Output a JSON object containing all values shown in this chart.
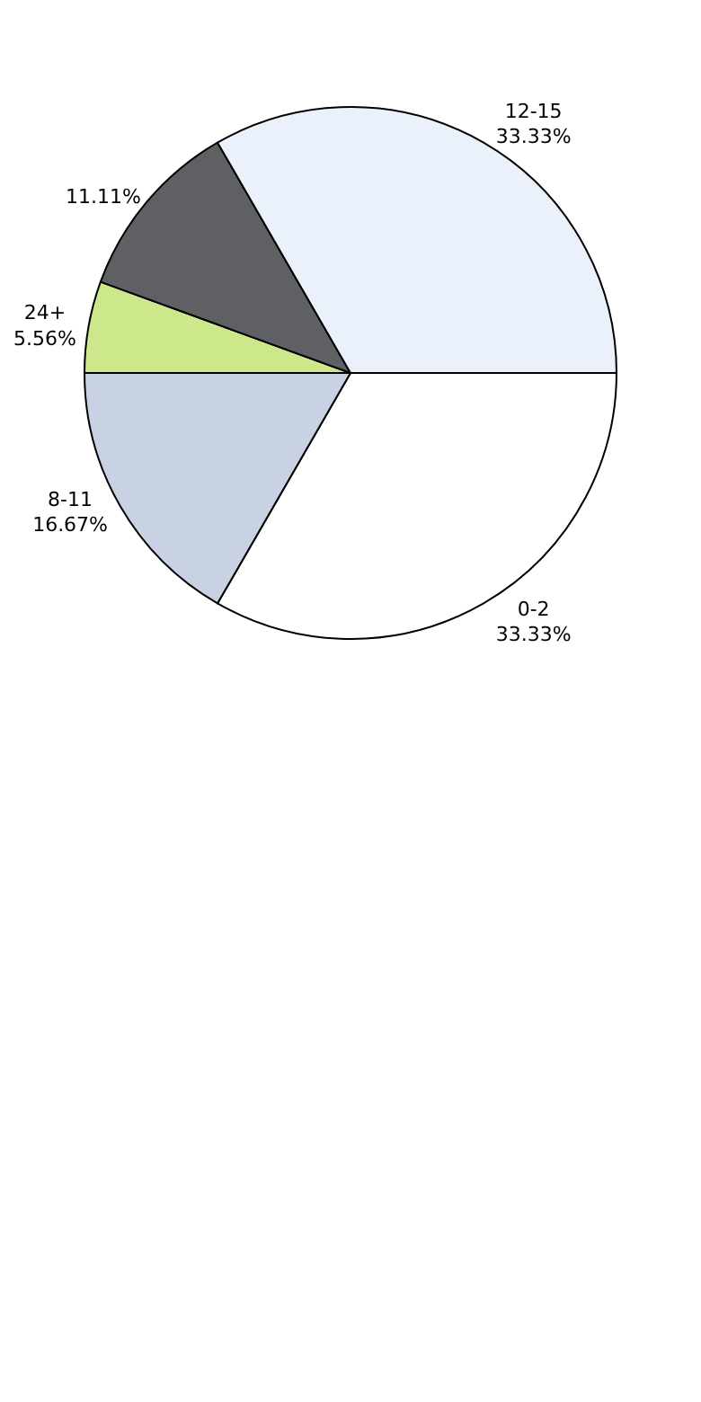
{
  "chart_data": {
    "type": "pie",
    "categories": [
      "0-2",
      "8-11",
      "24+",
      null,
      "12-15"
    ],
    "values": [
      33.33,
      16.67,
      5.56,
      11.11,
      33.33
    ],
    "value_labels": [
      "33.33%",
      "16.67%",
      "5.56%",
      "11.11%",
      "33.33%"
    ],
    "colors": [
      "#ffffff",
      "#c9d2e3",
      "#cde88a",
      "#5f6064",
      "#eaf1fb"
    ]
  }
}
